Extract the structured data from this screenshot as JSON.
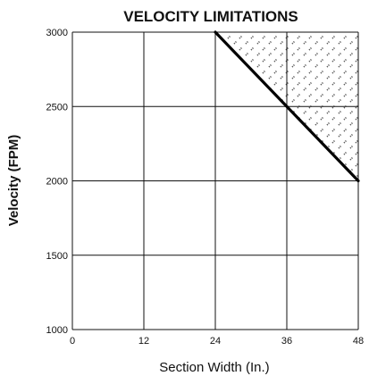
{
  "chart_data": {
    "type": "line",
    "title": "VELOCITY LIMITATIONS",
    "xlabel": "Section Width (In.)",
    "ylabel": "Velocity (FPM)",
    "xlim": [
      0,
      48
    ],
    "ylim": [
      1000,
      3000
    ],
    "xticks": [
      0,
      12,
      24,
      36,
      48
    ],
    "yticks": [
      1000,
      1500,
      2000,
      2500,
      3000
    ],
    "grid": true,
    "series": [
      {
        "x": [
          24,
          36,
          48
        ],
        "y": [
          3000,
          2500,
          2000
        ]
      }
    ],
    "shaded_region": {
      "description_pattern": "hatched",
      "x": [
        24,
        48,
        48
      ],
      "y": [
        3000,
        3000,
        2000
      ]
    }
  }
}
